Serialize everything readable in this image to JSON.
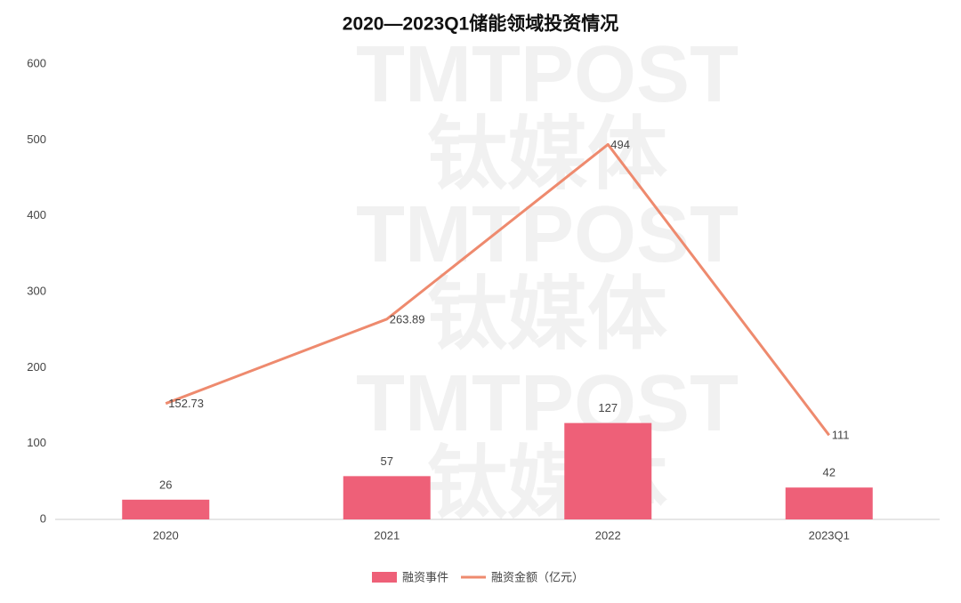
{
  "chart_data": {
    "type": "combo",
    "title": "2020—2023Q1储能领域投资情况",
    "watermark": [
      "钛媒体",
      "TMTPOST"
    ],
    "categories": [
      "2020",
      "2021",
      "2022",
      "2023Q1"
    ],
    "series": [
      {
        "name": "融资事件",
        "type": "bar",
        "color": "#ee6078",
        "values": [
          26,
          57,
          127,
          42
        ]
      },
      {
        "name": "融资金额（亿元）",
        "type": "line",
        "color": "#ee8a6e",
        "values": [
          152.73,
          263.89,
          494,
          111
        ]
      }
    ],
    "ylim": [
      0,
      600
    ],
    "yticks": [
      0,
      100,
      200,
      300,
      400,
      500,
      600
    ],
    "grid": false
  }
}
